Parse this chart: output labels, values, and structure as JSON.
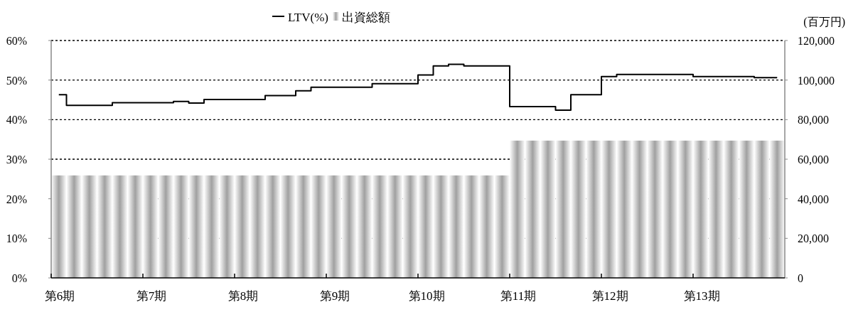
{
  "chart_data": {
    "type": "bar",
    "y2label": "(百万円)",
    "categories": [
      "第6期",
      null,
      null,
      null,
      null,
      null,
      "第7期",
      null,
      null,
      null,
      null,
      null,
      "第8期",
      null,
      null,
      null,
      null,
      null,
      "第9期",
      null,
      null,
      null,
      null,
      null,
      "第10期",
      null,
      null,
      null,
      null,
      null,
      "第11期",
      null,
      null,
      null,
      null,
      null,
      "第12期",
      null,
      null,
      null,
      null,
      null,
      "第13期",
      null,
      null,
      null,
      null,
      null
    ],
    "series": [
      {
        "name": "出資総額",
        "axis": "y2",
        "color": "#a0a0a0",
        "values": [
          51800,
          51800,
          51800,
          51800,
          51800,
          51800,
          51800,
          51800,
          51800,
          51800,
          51800,
          51800,
          51800,
          51800,
          51800,
          51800,
          51800,
          51800,
          51800,
          51800,
          51800,
          51800,
          51800,
          51800,
          51800,
          51800,
          51800,
          51800,
          51800,
          51800,
          69400,
          69400,
          69400,
          69400,
          69400,
          69400,
          69400,
          69400,
          69400,
          69400,
          69400,
          69400,
          69400,
          69400,
          69400,
          69400,
          69400,
          69400
        ]
      },
      {
        "name": "LTV(%)",
        "type": "step",
        "axis": "y",
        "color": "#000000",
        "values": [
          46.3,
          43.6,
          43.6,
          43.6,
          44.3,
          44.3,
          44.3,
          44.3,
          44.6,
          44.2,
          45.1,
          45.1,
          45.1,
          45.1,
          46.1,
          46.1,
          47.3,
          48.2,
          48.2,
          48.2,
          48.2,
          49.1,
          49.1,
          49.1,
          51.3,
          53.6,
          54.0,
          53.6,
          53.6,
          53.6,
          43.3,
          43.3,
          43.3,
          42.4,
          46.3,
          46.3,
          50.9,
          51.4,
          51.4,
          51.4,
          51.4,
          51.4,
          50.9,
          50.9,
          50.9,
          50.9,
          50.6,
          50.6
        ]
      }
    ],
    "ylim": [
      0,
      60
    ],
    "yticks": [
      {
        "value": 0,
        "label": "0%"
      },
      {
        "value": 10,
        "label": "10%"
      },
      {
        "value": 20,
        "label": "20%"
      },
      {
        "value": 30,
        "label": "30%"
      },
      {
        "value": 40,
        "label": "40%"
      },
      {
        "value": 50,
        "label": "50%"
      },
      {
        "value": 60,
        "label": "60%"
      }
    ],
    "y2lim": [
      0,
      120000
    ],
    "y2ticks": [
      0,
      {
        "value": 20000,
        "label": "20,000"
      },
      {
        "value": 40000,
        "label": "40,000"
      },
      {
        "value": 60000,
        "label": "60,000"
      },
      {
        "value": 80000,
        "label": "80,000"
      },
      {
        "value": 100000,
        "label": "100,000"
      },
      {
        "value": 120000,
        "label": "120,000"
      }
    ],
    "grid": "y",
    "legend": "top",
    "marker": "none",
    "line_style": "solid"
  }
}
